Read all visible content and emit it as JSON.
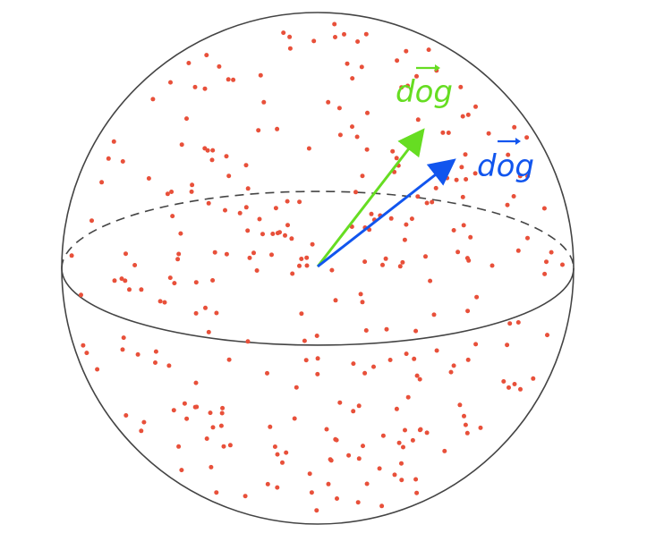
{
  "colors": {
    "sphere_outline": "#444444",
    "points": "#e8503a",
    "vector_a": "#66dd22",
    "vector_b": "#1155ee"
  },
  "vectors": [
    {
      "name": "dog",
      "label": "dog",
      "color": "#66dd22",
      "has_arrow_over_label": true
    },
    {
      "name": "dog",
      "label": "dog",
      "color": "#1155ee",
      "has_arrow_over_label": true
    }
  ],
  "points_style": "scattered random points on sphere surface",
  "equator_back_style": "dashed"
}
